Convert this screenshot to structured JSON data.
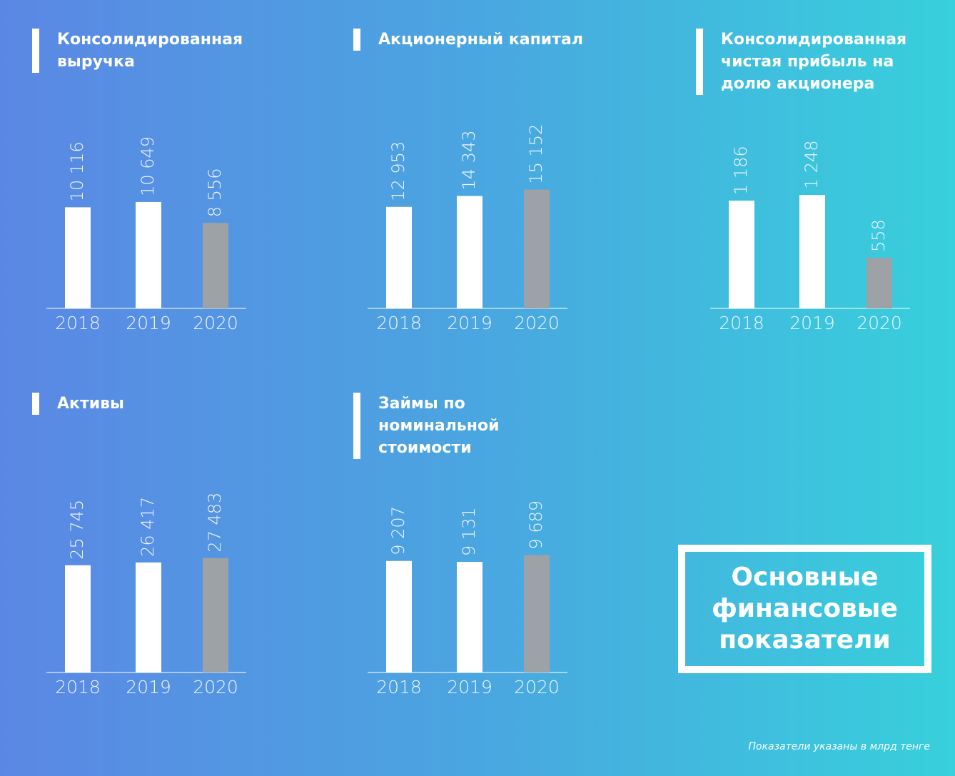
{
  "chart_data": [
    {
      "type": "bar",
      "title": "Консолидированная выручка",
      "categories": [
        "2018",
        "2019",
        "2020"
      ],
      "values": [
        10116,
        10649,
        8556
      ],
      "value_labels": [
        "10 116",
        "10 649",
        "8 556"
      ],
      "colors": [
        "#ffffff",
        "#ffffff",
        "#9da2a7"
      ],
      "ylim": [
        0,
        20000
      ]
    },
    {
      "type": "bar",
      "title": "Акционерный капитал",
      "categories": [
        "2018",
        "2019",
        "2020"
      ],
      "values": [
        12953,
        14343,
        15152
      ],
      "value_labels": [
        "12 953",
        "14 343",
        "15 152"
      ],
      "colors": [
        "#ffffff",
        "#ffffff",
        "#9da2a7"
      ],
      "ylim": [
        0,
        25500
      ]
    },
    {
      "type": "bar",
      "title": "Консолидированная чистая прибыль на долю акционера",
      "categories": [
        "2018",
        "2019",
        "2020"
      ],
      "values": [
        1186,
        1248,
        558
      ],
      "value_labels": [
        "1 186",
        "1 248",
        "558"
      ],
      "colors": [
        "#ffffff",
        "#ffffff",
        "#9da2a7"
      ],
      "ylim": [
        0,
        2200
      ]
    },
    {
      "type": "bar",
      "title": "Активы",
      "categories": [
        "2018",
        "2019",
        "2020"
      ],
      "values": [
        25745,
        26417,
        27483
      ],
      "value_labels": [
        "25 745",
        "26 417",
        "27 483"
      ],
      "colors": [
        "#ffffff",
        "#ffffff",
        "#9da2a7"
      ],
      "ylim": [
        0,
        48000
      ]
    },
    {
      "type": "bar",
      "title": "Займы по номинальной стоимости",
      "categories": [
        "2018",
        "2019",
        "2020"
      ],
      "values": [
        9207,
        9131,
        9689
      ],
      "value_labels": [
        "9 207",
        "9 131",
        "9 689"
      ],
      "colors": [
        "#ffffff",
        "#ffffff",
        "#9da2a7"
      ],
      "ylim": [
        0,
        16500
      ]
    }
  ],
  "heading": "Основные финансовые показатели",
  "footnote": "Показатели указаны в млрд тенге"
}
